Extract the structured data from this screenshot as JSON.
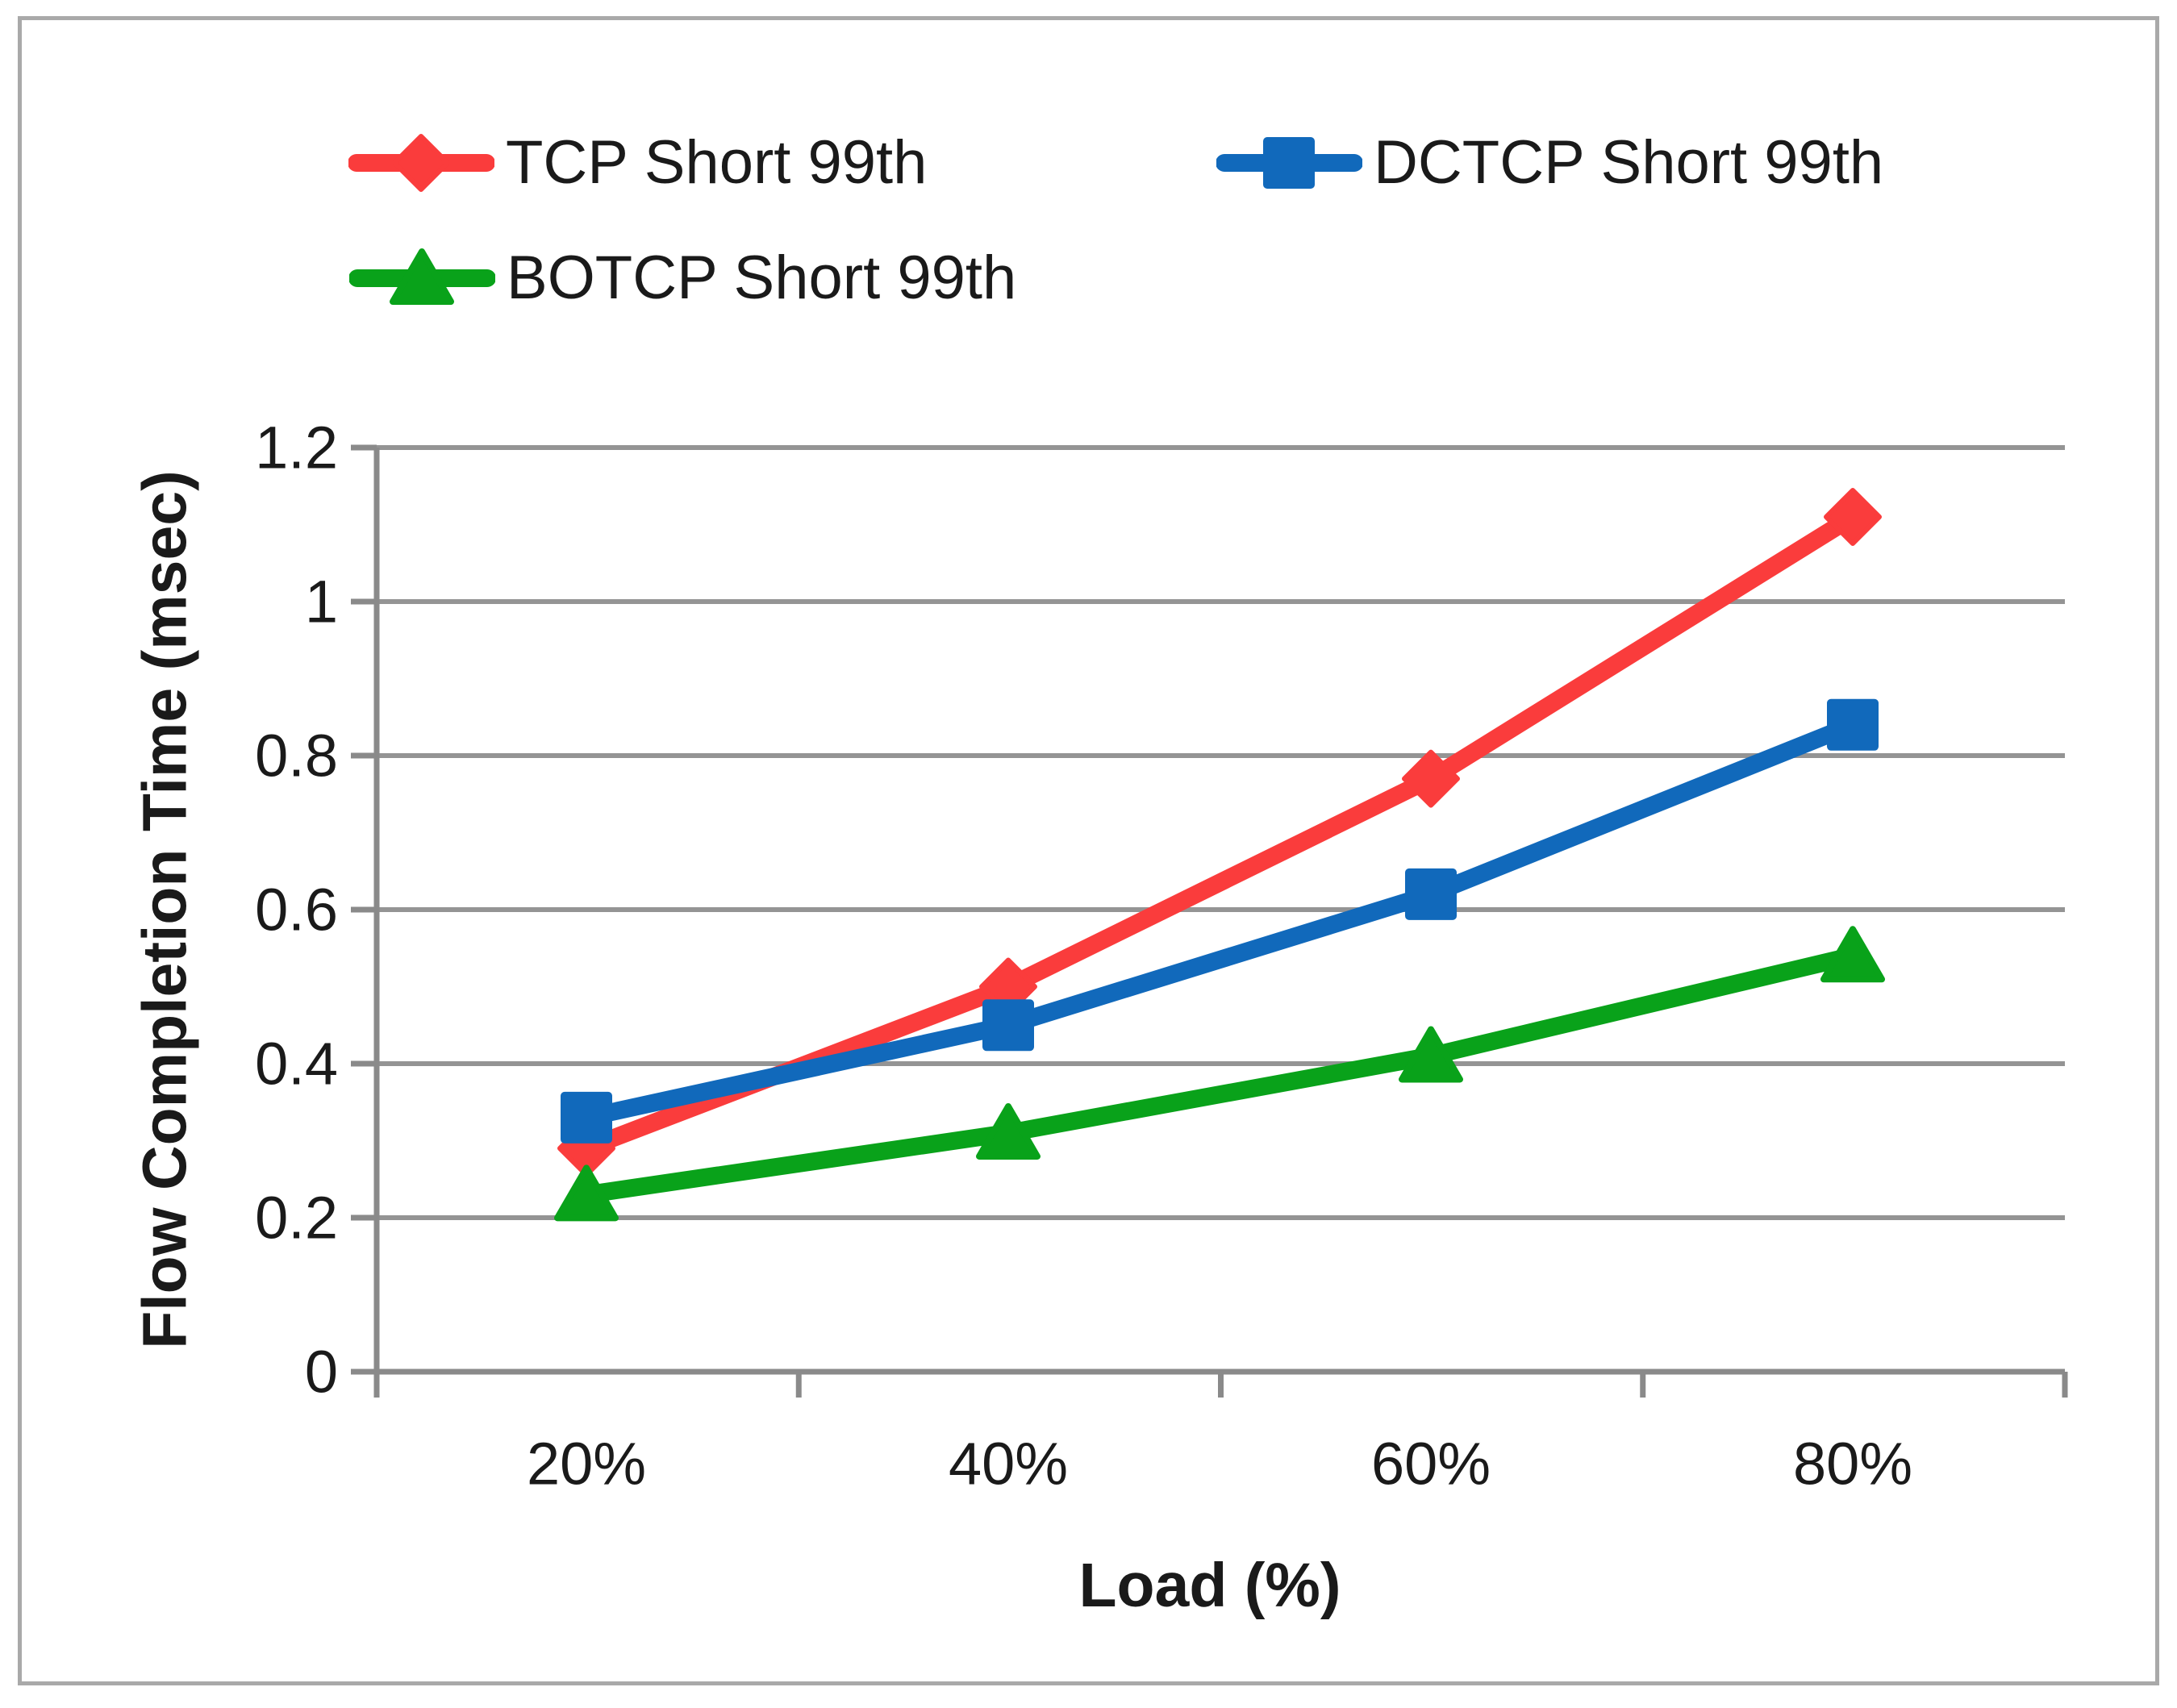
{
  "chart_data": {
    "type": "line",
    "title": "",
    "xlabel": "Load (%)",
    "ylabel": "Flow Completion Time (msec)",
    "categories": [
      "20%",
      "40%",
      "60%",
      "80%"
    ],
    "series": [
      {
        "name": "TCP Short 99th",
        "color": "#fa3c3c",
        "marker": "diamond",
        "values": [
          0.29,
          0.5,
          0.77,
          1.11
        ]
      },
      {
        "name": "DCTCP Short 99th",
        "color": "#1169bb",
        "marker": "square",
        "values": [
          0.33,
          0.45,
          0.62,
          0.84
        ]
      },
      {
        "name": "BOTCP Short 99th",
        "color": "#09a21a",
        "marker": "triangle",
        "values": [
          0.23,
          0.31,
          0.41,
          0.54
        ]
      }
    ],
    "ylim": [
      0,
      1.2
    ],
    "ytick_step": 0.2,
    "ytick_labels": [
      "0",
      "0.2",
      "0.4",
      "0.6",
      "0.8",
      "1",
      "1.2"
    ],
    "grid": true,
    "legend_position": "top-left-two-column"
  },
  "colors": {
    "grid": "#949494",
    "axis": "#8a8a8a",
    "text": "#1a1a1a",
    "border": "#a9a9a9",
    "background": "#ffffff"
  }
}
